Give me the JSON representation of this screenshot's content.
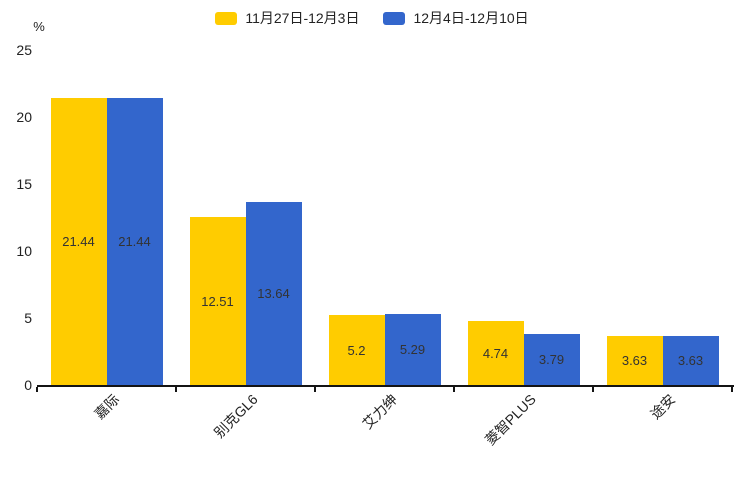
{
  "chart_data": {
    "type": "bar",
    "categories": [
      "嘉际",
      "别克GL6",
      "艾力绅",
      "菱智PLUS",
      "途安"
    ],
    "series": [
      {
        "name": "11月27日-12月3日",
        "color": "#FFCC00",
        "values": [
          21.44,
          12.51,
          5.2,
          4.74,
          3.63
        ]
      },
      {
        "name": "12月4日-12月10日",
        "color": "#3366CC",
        "values": [
          21.44,
          13.64,
          5.29,
          3.79,
          3.63
        ]
      }
    ],
    "ylabel": "%",
    "ylim": [
      0,
      25
    ],
    "yticks": [
      0,
      5,
      10,
      15,
      20,
      25
    ],
    "legend_position": "top",
    "grid": false,
    "value_labels": true,
    "axis_color": "#141414",
    "value_label_color": "#333333"
  }
}
